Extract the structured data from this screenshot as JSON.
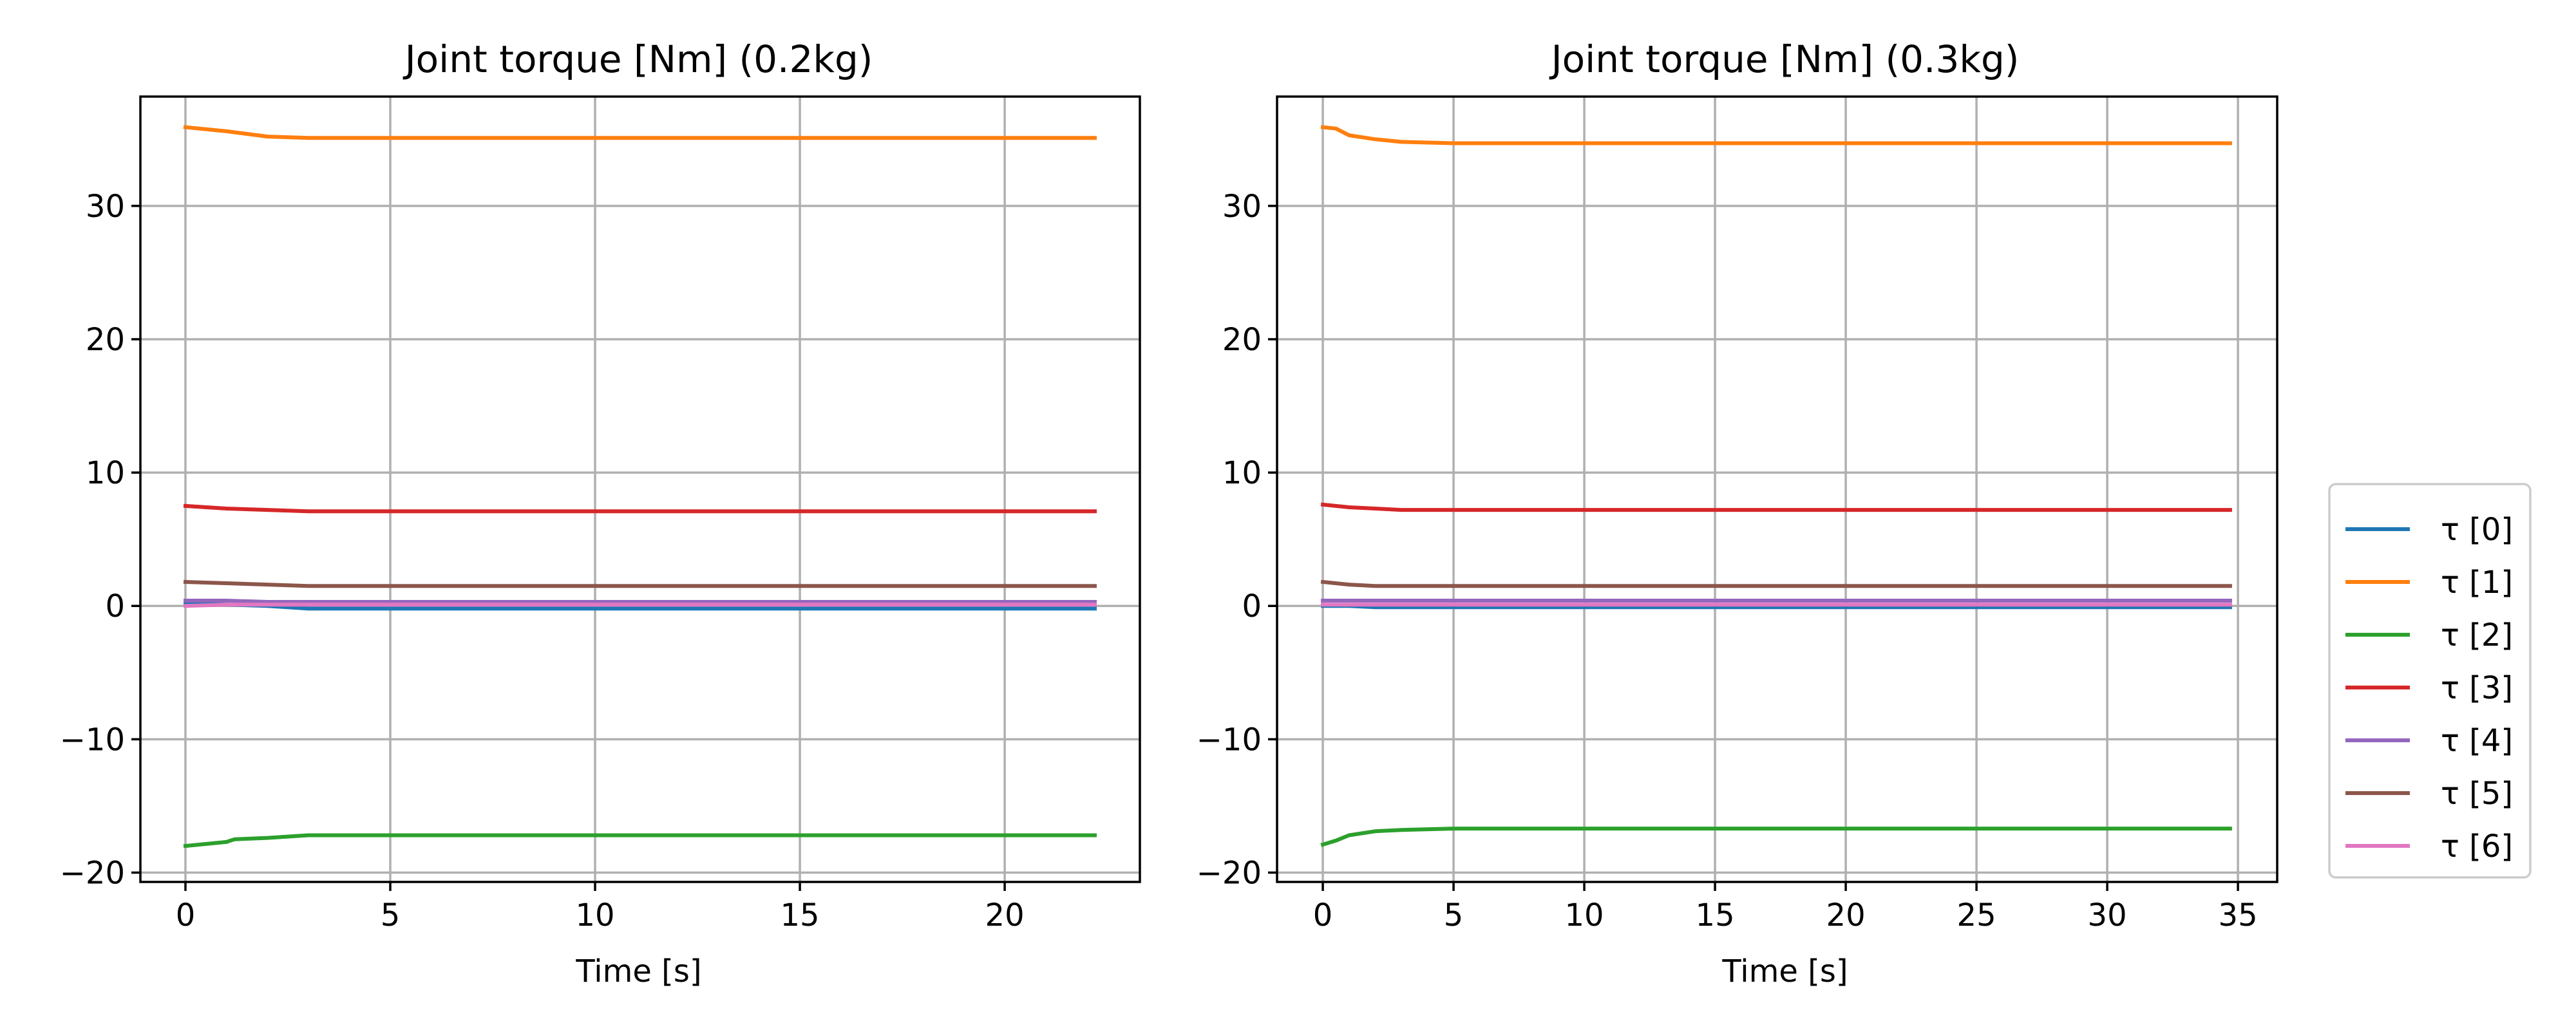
{
  "legend": {
    "entries": [
      "τ [0]",
      "τ [1]",
      "τ [2]",
      "τ [3]",
      "τ [4]",
      "τ [5]",
      "τ [6]"
    ]
  },
  "series_colors": [
    "#1f77b4",
    "#ff7f0e",
    "#2ca02c",
    "#d62728",
    "#9467bd",
    "#8c564b",
    "#e377c2"
  ],
  "grid": true,
  "legend_placement": "right",
  "chart_data": [
    {
      "type": "line",
      "title": "Joint torque [Nm] (0.2kg)",
      "xlabel": "Time [s]",
      "ylabel": "",
      "xlim": [
        -1.1,
        23.3
      ],
      "ylim": [
        -20.7,
        38.2
      ],
      "xticks": [
        0,
        5,
        10,
        15,
        20
      ],
      "yticks": [
        -20,
        -10,
        0,
        10,
        20,
        30
      ],
      "series": [
        {
          "name": "τ [0]",
          "x": [
            0,
            1,
            2,
            3,
            5,
            10,
            15,
            20,
            22.2
          ],
          "y": [
            0.2,
            0.1,
            0.0,
            -0.2,
            -0.2,
            -0.2,
            -0.2,
            -0.2,
            -0.2
          ]
        },
        {
          "name": "τ [1]",
          "x": [
            0,
            1,
            2,
            3,
            5,
            10,
            15,
            20,
            22.2
          ],
          "y": [
            35.9,
            35.6,
            35.2,
            35.1,
            35.1,
            35.1,
            35.1,
            35.1,
            35.1
          ]
        },
        {
          "name": "τ [2]",
          "x": [
            0,
            1,
            1.2,
            2,
            3,
            5,
            10,
            15,
            20,
            22.2
          ],
          "y": [
            -18.0,
            -17.7,
            -17.5,
            -17.4,
            -17.2,
            -17.2,
            -17.2,
            -17.2,
            -17.2,
            -17.2
          ]
        },
        {
          "name": "τ [3]",
          "x": [
            0,
            1,
            2,
            3,
            5,
            10,
            15,
            20,
            22.2
          ],
          "y": [
            7.5,
            7.3,
            7.2,
            7.1,
            7.1,
            7.1,
            7.1,
            7.1,
            7.1
          ]
        },
        {
          "name": "τ [4]",
          "x": [
            0,
            1,
            2,
            3,
            5,
            10,
            15,
            20,
            22.2
          ],
          "y": [
            0.4,
            0.4,
            0.3,
            0.3,
            0.3,
            0.3,
            0.3,
            0.3,
            0.3
          ]
        },
        {
          "name": "τ [5]",
          "x": [
            0,
            1,
            2,
            3,
            5,
            10,
            15,
            20,
            22.2
          ],
          "y": [
            1.8,
            1.7,
            1.6,
            1.5,
            1.5,
            1.5,
            1.5,
            1.5,
            1.5
          ]
        },
        {
          "name": "τ [6]",
          "x": [
            0,
            1,
            2,
            3,
            5,
            10,
            15,
            20,
            22.2
          ],
          "y": [
            0.0,
            0.1,
            0.1,
            0.1,
            0.1,
            0.1,
            0.1,
            0.1,
            0.1
          ]
        }
      ]
    },
    {
      "type": "line",
      "title": "Joint torque [Nm] (0.3kg)",
      "xlabel": "Time [s]",
      "ylabel": "",
      "xlim": [
        -1.75,
        36.5
      ],
      "ylim": [
        -20.7,
        38.2
      ],
      "xticks": [
        0,
        5,
        10,
        15,
        20,
        25,
        30,
        35
      ],
      "yticks": [
        -20,
        -10,
        0,
        10,
        20,
        30
      ],
      "series": [
        {
          "name": "τ [0]",
          "x": [
            0,
            1,
            2,
            3,
            5,
            10,
            20,
            30,
            34.7
          ],
          "y": [
            0.0,
            0.0,
            -0.1,
            -0.1,
            -0.1,
            -0.1,
            -0.1,
            -0.1,
            -0.1
          ]
        },
        {
          "name": "τ [1]",
          "x": [
            0,
            0.5,
            1,
            2,
            3,
            5,
            10,
            20,
            30,
            34.7
          ],
          "y": [
            35.9,
            35.8,
            35.3,
            35.0,
            34.8,
            34.7,
            34.7,
            34.7,
            34.7,
            34.7
          ]
        },
        {
          "name": "τ [2]",
          "x": [
            0,
            0.5,
            1,
            2,
            3,
            5,
            10,
            20,
            30,
            34.7
          ],
          "y": [
            -17.9,
            -17.6,
            -17.2,
            -16.9,
            -16.8,
            -16.7,
            -16.7,
            -16.7,
            -16.7,
            -16.7
          ]
        },
        {
          "name": "τ [3]",
          "x": [
            0,
            1,
            2,
            3,
            5,
            10,
            20,
            30,
            34.7
          ],
          "y": [
            7.6,
            7.4,
            7.3,
            7.2,
            7.2,
            7.2,
            7.2,
            7.2,
            7.2
          ]
        },
        {
          "name": "τ [4]",
          "x": [
            0,
            1,
            2,
            3,
            5,
            10,
            20,
            30,
            34.7
          ],
          "y": [
            0.4,
            0.4,
            0.4,
            0.4,
            0.4,
            0.4,
            0.4,
            0.4,
            0.4
          ]
        },
        {
          "name": "τ [5]",
          "x": [
            0,
            1,
            2,
            3,
            5,
            10,
            20,
            30,
            34.7
          ],
          "y": [
            1.8,
            1.6,
            1.5,
            1.5,
            1.5,
            1.5,
            1.5,
            1.5,
            1.5
          ]
        },
        {
          "name": "τ [6]",
          "x": [
            0,
            1,
            2,
            3,
            5,
            10,
            20,
            30,
            34.7
          ],
          "y": [
            0.1,
            0.1,
            0.1,
            0.1,
            0.1,
            0.1,
            0.1,
            0.1,
            0.1
          ]
        }
      ]
    }
  ]
}
